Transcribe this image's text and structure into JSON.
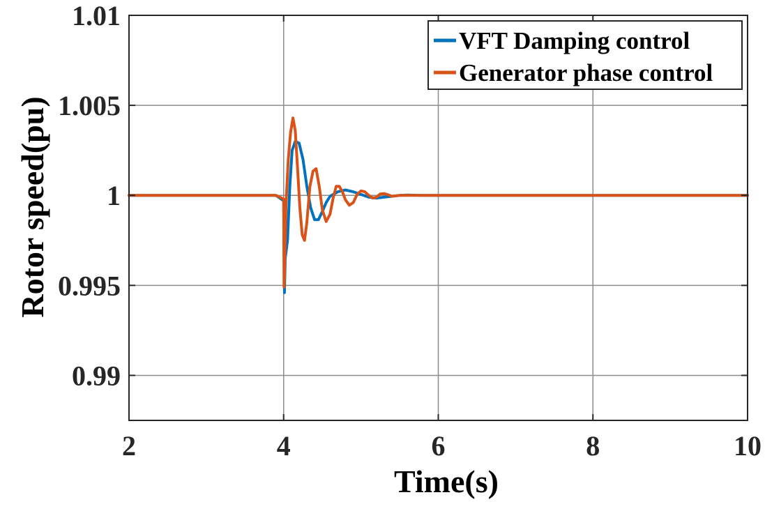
{
  "chart_data": {
    "type": "line",
    "xlabel": "Time(s)",
    "ylabel": "Rotor speed(pu)",
    "xlim": [
      2,
      10
    ],
    "ylim": [
      0.9875,
      1.01
    ],
    "xticks": [
      2,
      4,
      6,
      8,
      10
    ],
    "xtick_labels": [
      "2",
      "4",
      "6",
      "8",
      "10"
    ],
    "yticks": [
      0.99,
      0.995,
      1.0,
      1.005,
      1.01
    ],
    "ytick_labels": [
      "0.99",
      "0.995",
      "1",
      "1.005",
      "1.01"
    ],
    "grid": true,
    "legend_position": "top-right",
    "series": [
      {
        "name": "VFT Damping control",
        "color": "#0072BD",
        "x": [
          2.0,
          3.9,
          4.0,
          4.01,
          4.02,
          4.05,
          4.08,
          4.11,
          4.15,
          4.2,
          4.25,
          4.3,
          4.35,
          4.4,
          4.45,
          4.5,
          4.55,
          4.6,
          4.7,
          4.8,
          4.9,
          5.0,
          5.1,
          5.2,
          5.3,
          5.4,
          5.5,
          5.6,
          5.8,
          6.0,
          10.0
        ],
        "y": [
          1.0,
          1.0,
          0.9997,
          0.9946,
          0.9965,
          0.9975,
          1.0005,
          1.0025,
          1.003,
          1.0029,
          1.002,
          1.0005,
          0.9993,
          0.99865,
          0.99865,
          0.9991,
          0.9996,
          0.99995,
          1.0002,
          1.0003,
          1.0002,
          1.00005,
          0.9999,
          0.99985,
          0.9999,
          0.99995,
          1.0,
          1.00002,
          1.0,
          1.0,
          1.0
        ]
      },
      {
        "name": "Generator phase control",
        "color": "#D95319",
        "x": [
          2.0,
          3.9,
          4.0,
          4.005,
          4.01,
          4.03,
          4.06,
          4.09,
          4.12,
          4.15,
          4.18,
          4.21,
          4.24,
          4.27,
          4.3,
          4.34,
          4.38,
          4.42,
          4.46,
          4.5,
          4.55,
          4.6,
          4.64,
          4.68,
          4.72,
          4.76,
          4.8,
          4.85,
          4.9,
          4.95,
          5.0,
          5.05,
          5.1,
          5.15,
          5.2,
          5.25,
          5.3,
          5.35,
          5.4,
          5.45,
          5.5,
          5.6,
          5.7,
          6.0,
          10.0
        ],
        "y": [
          1.0,
          1.0,
          0.9998,
          0.9949,
          0.9955,
          0.9995,
          1.002,
          1.0035,
          1.0043,
          1.0036,
          1.0015,
          0.9993,
          0.9978,
          0.9975,
          0.9985,
          1.0005,
          1.00135,
          1.00148,
          1.0005,
          0.9992,
          0.99855,
          0.99895,
          0.99985,
          1.0005,
          1.0005,
          1.0002,
          0.99975,
          0.99945,
          0.9996,
          1.00005,
          1.00025,
          1.0002,
          1.0,
          0.99985,
          0.9999,
          1.00008,
          1.0001,
          1.00003,
          0.99995,
          0.99997,
          1.0,
          1.0,
          1.0,
          1.0,
          1.0
        ]
      }
    ]
  }
}
